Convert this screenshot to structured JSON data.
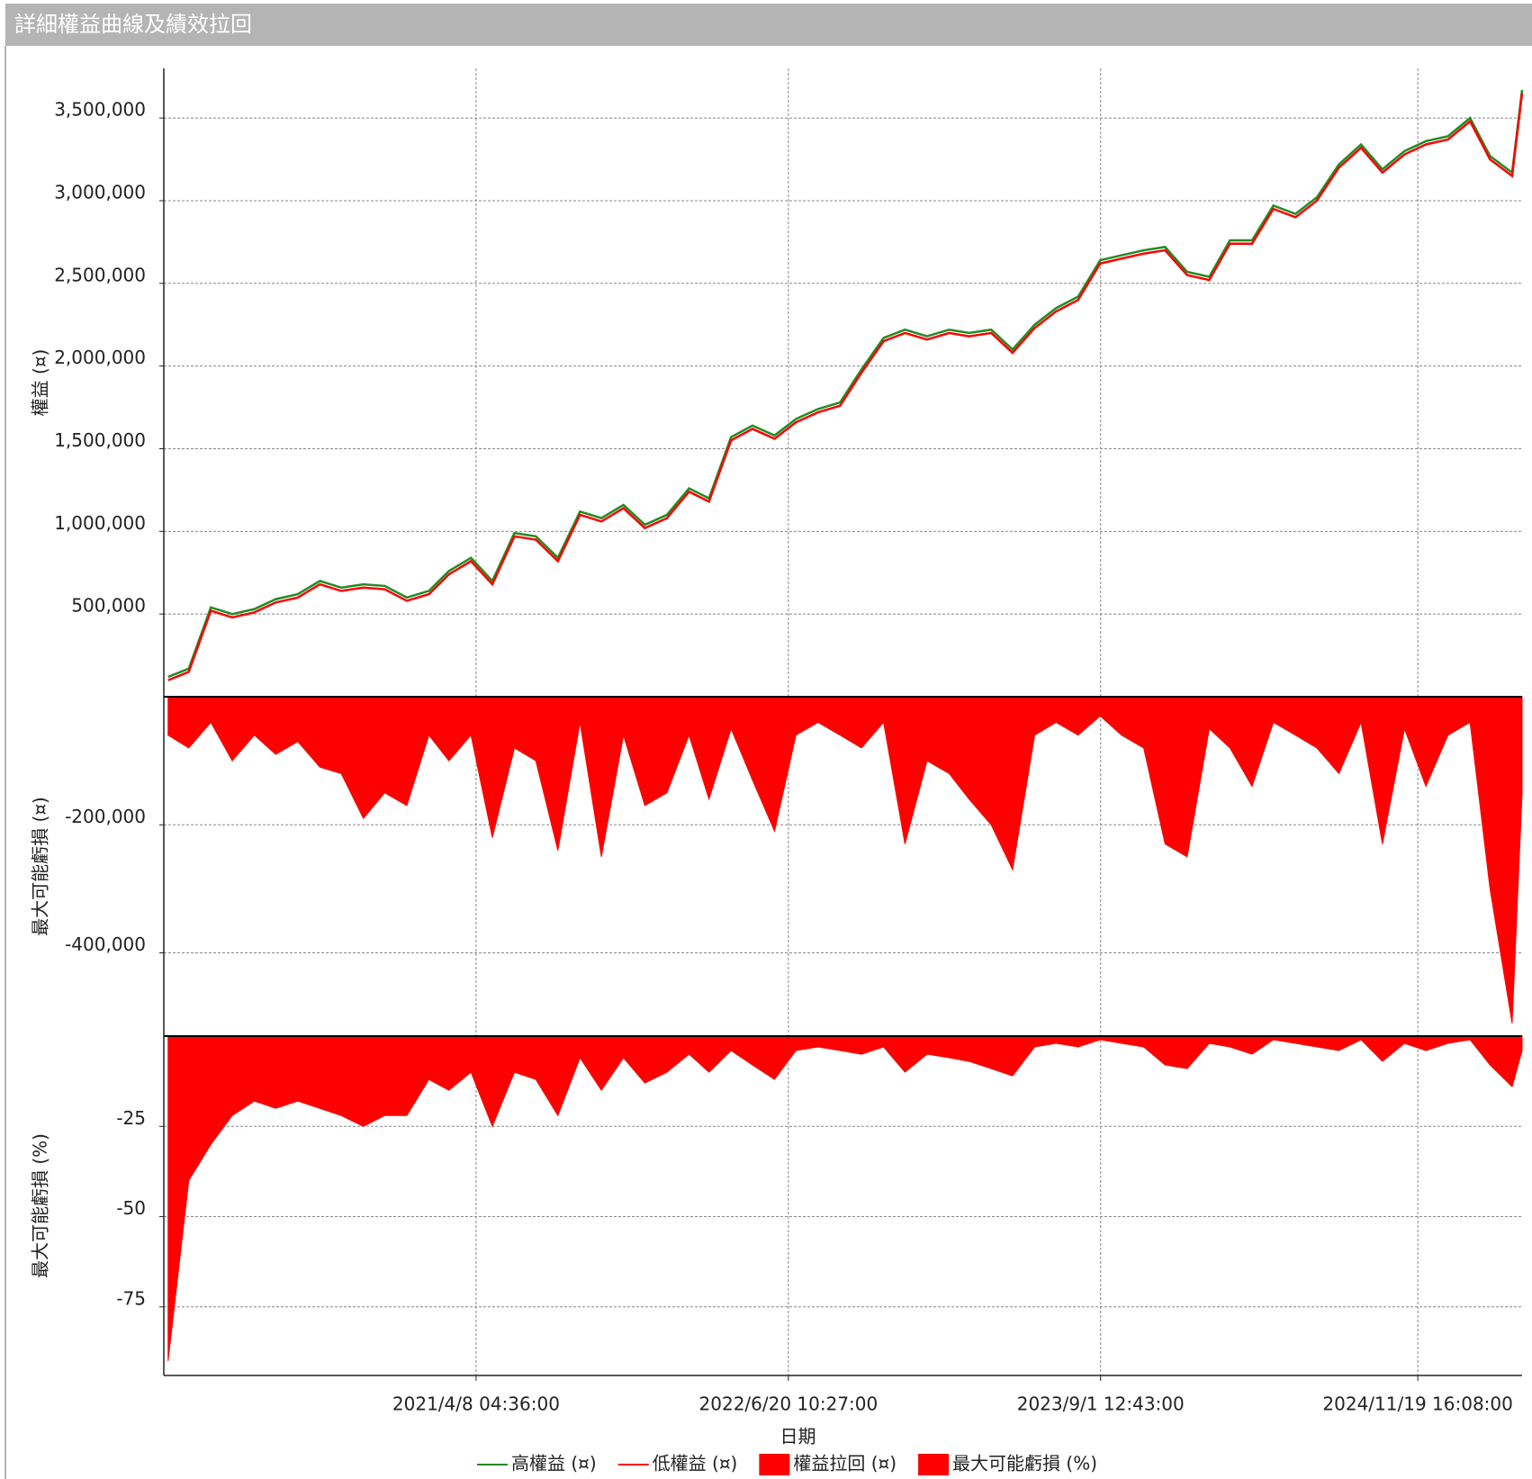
{
  "chart_data": [
    {
      "type": "line",
      "title": "詳細權益曲線及績效拉回",
      "ylabel": "權益 (¤)",
      "x": [
        "2020/2/1 00:00:00",
        "2020/3/1 00:00:00",
        "2020/4/1 00:00:00",
        "2020/5/1 00:00:00",
        "2020/6/1 00:00:00",
        "2020/7/1 00:00:00",
        "2020/8/1 00:00:00",
        "2020/9/1 00:00:00",
        "2020/10/1 00:00:00",
        "2020/11/1 00:00:00",
        "2020/12/1 00:00:00",
        "2021/1/1 00:00:00",
        "2021/2/1 00:00:00",
        "2021/3/1 00:00:00",
        "2021/4/1 00:00:00",
        "2021/5/1 00:00:00",
        "2021/6/1 00:00:00",
        "2021/7/1 00:00:00",
        "2021/8/1 00:00:00",
        "2021/9/1 00:00:00",
        "2021/10/1 00:00:00",
        "2021/11/1 00:00:00",
        "2021/12/1 00:00:00",
        "2022/1/1 00:00:00",
        "2022/2/1 00:00:00",
        "2022/3/1 00:00:00",
        "2022/4/1 00:00:00",
        "2022/5/1 00:00:00",
        "2022/6/1 00:00:00",
        "2022/7/1 00:00:00",
        "2022/8/1 00:00:00",
        "2022/9/1 00:00:00",
        "2022/10/1 00:00:00",
        "2022/11/1 00:00:00",
        "2022/12/1 00:00:00",
        "2023/1/1 00:00:00",
        "2023/2/1 00:00:00",
        "2023/3/1 00:00:00",
        "2023/4/1 00:00:00",
        "2023/5/1 00:00:00",
        "2023/6/1 00:00:00",
        "2023/7/1 00:00:00",
        "2023/8/1 00:00:00",
        "2023/9/1 00:00:00",
        "2023/10/1 00:00:00",
        "2023/11/1 00:00:00",
        "2023/12/1 00:00:00",
        "2024/1/1 00:00:00",
        "2024/2/1 00:00:00",
        "2024/3/1 00:00:00",
        "2024/4/1 00:00:00",
        "2024/5/1 00:00:00",
        "2024/6/1 00:00:00",
        "2024/7/1 00:00:00",
        "2024/8/1 00:00:00",
        "2024/9/1 00:00:00",
        "2024/10/1 00:00:00",
        "2024/11/1 00:00:00",
        "2024/12/1 00:00:00",
        "2025/1/1 00:00:00",
        "2025/2/1 00:00:00",
        "2025/3/1 00:00:00",
        "2025/4/1 00:00:00",
        "2025/4/15 00:00:00"
      ],
      "series": [
        {
          "name": "高權益 (¤)",
          "color": "#228b22",
          "values": [
            120000,
            170000,
            540000,
            500000,
            530000,
            590000,
            620000,
            700000,
            660000,
            680000,
            670000,
            600000,
            640000,
            760000,
            840000,
            700000,
            990000,
            970000,
            840000,
            1120000,
            1080000,
            1160000,
            1040000,
            1100000,
            1260000,
            1200000,
            1570000,
            1640000,
            1580000,
            1680000,
            1740000,
            1780000,
            1980000,
            2170000,
            2220000,
            2180000,
            2220000,
            2200000,
            2220000,
            2100000,
            2250000,
            2350000,
            2420000,
            2640000,
            2670000,
            2700000,
            2720000,
            2570000,
            2540000,
            2760000,
            2760000,
            2970000,
            2920000,
            3020000,
            3220000,
            3340000,
            3190000,
            3300000,
            3360000,
            3390000,
            3500000,
            3270000,
            3170000,
            3670000
          ]
        },
        {
          "name": "低權益 (¤)",
          "color": "#ff0000",
          "values": [
            100000,
            150000,
            520000,
            480000,
            510000,
            570000,
            600000,
            680000,
            640000,
            660000,
            650000,
            580000,
            620000,
            740000,
            820000,
            680000,
            970000,
            950000,
            820000,
            1100000,
            1060000,
            1140000,
            1020000,
            1080000,
            1240000,
            1180000,
            1550000,
            1620000,
            1560000,
            1660000,
            1720000,
            1760000,
            1960000,
            2150000,
            2200000,
            2160000,
            2200000,
            2180000,
            2200000,
            2080000,
            2230000,
            2330000,
            2400000,
            2620000,
            2650000,
            2680000,
            2700000,
            2550000,
            2520000,
            2740000,
            2740000,
            2950000,
            2900000,
            3000000,
            3200000,
            3320000,
            3170000,
            3280000,
            3340000,
            3370000,
            3480000,
            3250000,
            3150000,
            3650000
          ]
        }
      ],
      "ylim": [
        0,
        3800000
      ],
      "yticks": [
        {
          "value": 500000,
          "label": "500,000"
        },
        {
          "value": 1000000,
          "label": "1,000,000"
        },
        {
          "value": 1500000,
          "label": "1,500,000"
        },
        {
          "value": 2000000,
          "label": "2,000,000"
        },
        {
          "value": 2500000,
          "label": "2,500,000"
        },
        {
          "value": 3000000,
          "label": "3,000,000"
        },
        {
          "value": 3500000,
          "label": "3,500,000"
        }
      ],
      "grid": true
    },
    {
      "type": "area",
      "ylabel": "最大可能虧損 (¤)",
      "x": [
        "2020/2/1 00:00:00",
        "2020/3/1 00:00:00",
        "2020/4/1 00:00:00",
        "2020/5/1 00:00:00",
        "2020/6/1 00:00:00",
        "2020/7/1 00:00:00",
        "2020/8/1 00:00:00",
        "2020/9/1 00:00:00",
        "2020/10/1 00:00:00",
        "2020/11/1 00:00:00",
        "2020/12/1 00:00:00",
        "2021/1/1 00:00:00",
        "2021/2/1 00:00:00",
        "2021/3/1 00:00:00",
        "2021/4/1 00:00:00",
        "2021/5/1 00:00:00",
        "2021/6/1 00:00:00",
        "2021/7/1 00:00:00",
        "2021/8/1 00:00:00",
        "2021/9/1 00:00:00",
        "2021/10/1 00:00:00",
        "2021/11/1 00:00:00",
        "2021/12/1 00:00:00",
        "2022/1/1 00:00:00",
        "2022/2/1 00:00:00",
        "2022/3/1 00:00:00",
        "2022/4/1 00:00:00",
        "2022/5/1 00:00:00",
        "2022/6/1 00:00:00",
        "2022/7/1 00:00:00",
        "2022/8/1 00:00:00",
        "2022/9/1 00:00:00",
        "2022/10/1 00:00:00",
        "2022/11/1 00:00:00",
        "2022/12/1 00:00:00",
        "2023/1/1 00:00:00",
        "2023/2/1 00:00:00",
        "2023/3/1 00:00:00",
        "2023/4/1 00:00:00",
        "2023/5/1 00:00:00",
        "2023/6/1 00:00:00",
        "2023/7/1 00:00:00",
        "2023/8/1 00:00:00",
        "2023/9/1 00:00:00",
        "2023/10/1 00:00:00",
        "2023/11/1 00:00:00",
        "2023/12/1 00:00:00",
        "2024/1/1 00:00:00",
        "2024/2/1 00:00:00",
        "2024/3/1 00:00:00",
        "2024/4/1 00:00:00",
        "2024/5/1 00:00:00",
        "2024/6/1 00:00:00",
        "2024/7/1 00:00:00",
        "2024/8/1 00:00:00",
        "2024/9/1 00:00:00",
        "2024/10/1 00:00:00",
        "2024/11/1 00:00:00",
        "2024/12/1 00:00:00",
        "2025/1/1 00:00:00",
        "2025/2/1 00:00:00",
        "2025/3/1 00:00:00",
        "2025/4/1 00:00:00",
        "2025/4/15 00:00:00"
      ],
      "series": [
        {
          "name": "權益拉回 (¤)",
          "color": "#ff0000",
          "values": [
            -60000,
            -80000,
            -40000,
            -100000,
            -60000,
            -90000,
            -70000,
            -110000,
            -120000,
            -190000,
            -150000,
            -170000,
            -60000,
            -100000,
            -60000,
            -220000,
            -80000,
            -100000,
            -240000,
            -40000,
            -250000,
            -60000,
            -170000,
            -150000,
            -60000,
            -160000,
            -50000,
            -130000,
            -210000,
            -60000,
            -40000,
            -60000,
            -80000,
            -40000,
            -230000,
            -100000,
            -120000,
            -160000,
            -200000,
            -270000,
            -60000,
            -40000,
            -60000,
            -30000,
            -60000,
            -80000,
            -230000,
            -250000,
            -50000,
            -80000,
            -140000,
            -40000,
            -60000,
            -80000,
            -120000,
            -40000,
            -230000,
            -50000,
            -140000,
            -60000,
            -40000,
            -300000,
            -510000,
            -150000
          ]
        }
      ],
      "ylim": [
        -530000,
        0
      ],
      "yticks": [
        {
          "value": -200000,
          "label": "-200,000"
        },
        {
          "value": -400000,
          "label": "-400,000"
        }
      ],
      "grid": true
    },
    {
      "type": "area",
      "ylabel": "最大可能虧損 (%)",
      "xlabel": "日期",
      "x": [
        "2020/2/1 00:00:00",
        "2020/3/1 00:00:00",
        "2020/4/1 00:00:00",
        "2020/5/1 00:00:00",
        "2020/6/1 00:00:00",
        "2020/7/1 00:00:00",
        "2020/8/1 00:00:00",
        "2020/9/1 00:00:00",
        "2020/10/1 00:00:00",
        "2020/11/1 00:00:00",
        "2020/12/1 00:00:00",
        "2021/1/1 00:00:00",
        "2021/2/1 00:00:00",
        "2021/3/1 00:00:00",
        "2021/4/1 00:00:00",
        "2021/5/1 00:00:00",
        "2021/6/1 00:00:00",
        "2021/7/1 00:00:00",
        "2021/8/1 00:00:00",
        "2021/9/1 00:00:00",
        "2021/10/1 00:00:00",
        "2021/11/1 00:00:00",
        "2021/12/1 00:00:00",
        "2022/1/1 00:00:00",
        "2022/2/1 00:00:00",
        "2022/3/1 00:00:00",
        "2022/4/1 00:00:00",
        "2022/5/1 00:00:00",
        "2022/6/1 00:00:00",
        "2022/7/1 00:00:00",
        "2022/8/1 00:00:00",
        "2022/9/1 00:00:00",
        "2022/10/1 00:00:00",
        "2022/11/1 00:00:00",
        "2022/12/1 00:00:00",
        "2023/1/1 00:00:00",
        "2023/2/1 00:00:00",
        "2023/3/1 00:00:00",
        "2023/4/1 00:00:00",
        "2023/5/1 00:00:00",
        "2023/6/1 00:00:00",
        "2023/7/1 00:00:00",
        "2023/8/1 00:00:00",
        "2023/9/1 00:00:00",
        "2023/10/1 00:00:00",
        "2023/11/1 00:00:00",
        "2023/12/1 00:00:00",
        "2024/1/1 00:00:00",
        "2024/2/1 00:00:00",
        "2024/3/1 00:00:00",
        "2024/4/1 00:00:00",
        "2024/5/1 00:00:00",
        "2024/6/1 00:00:00",
        "2024/7/1 00:00:00",
        "2024/8/1 00:00:00",
        "2024/9/1 00:00:00",
        "2024/10/1 00:00:00",
        "2024/11/1 00:00:00",
        "2024/12/1 00:00:00",
        "2025/1/1 00:00:00",
        "2025/2/1 00:00:00",
        "2025/3/1 00:00:00",
        "2025/4/1 00:00:00",
        "2025/4/15 00:00:00"
      ],
      "series": [
        {
          "name": "最大可能虧損 (%)",
          "color": "#ff0000",
          "values": [
            -90,
            -40,
            -30,
            -22,
            -18,
            -20,
            -18,
            -20,
            -22,
            -25,
            -22,
            -22,
            -12,
            -15,
            -10,
            -25,
            -10,
            -12,
            -22,
            -6,
            -15,
            -6,
            -13,
            -10,
            -5,
            -10,
            -4,
            -8,
            -12,
            -4,
            -3,
            -4,
            -5,
            -3,
            -10,
            -5,
            -6,
            -7,
            -9,
            -11,
            -3,
            -2,
            -3,
            -1,
            -2,
            -3,
            -8,
            -9,
            -2,
            -3,
            -5,
            -1,
            -2,
            -3,
            -4,
            -1,
            -7,
            -2,
            -4,
            -2,
            -1,
            -8,
            -14,
            -4
          ]
        }
      ],
      "ylim": [
        -94,
        0
      ],
      "yticks": [
        -25,
        -50,
        -75
      ],
      "xlim": [
        "2020/1/26 00:00:00",
        "2025/4/15 00:00:00"
      ],
      "xticks": [
        "2021/4/8 04:36:00",
        "2022/6/20 10:27:00",
        "2023/9/1 12:43:00",
        "2024/11/19 16:08:00"
      ],
      "grid": true
    }
  ]
}
